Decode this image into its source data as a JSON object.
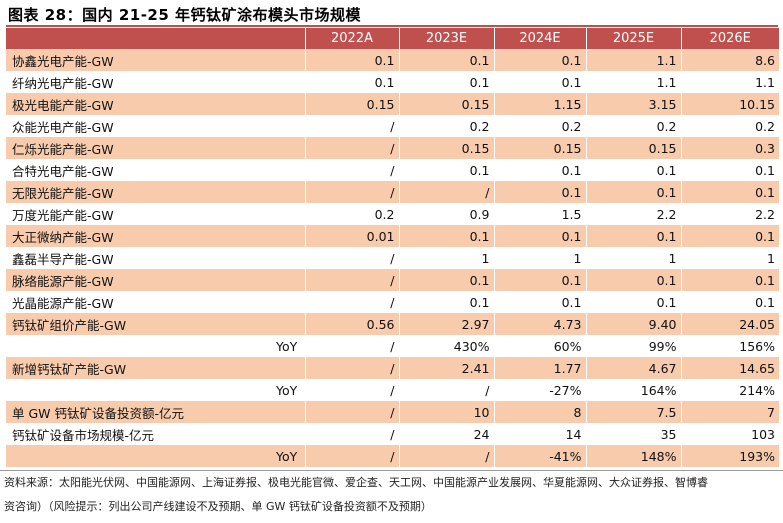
{
  "title": "图表 28：国内 21-25 年钙钛矿涂布模头市场规模",
  "columns": [
    "",
    "2022A",
    "2023E",
    "2024E",
    "2025E",
    "2026E"
  ],
  "rows": [
    {
      "label": "协鑫光电产能-GW",
      "values": [
        "0.1",
        "0.1",
        "0.1",
        "1.1",
        "8.6"
      ]
    },
    {
      "label": "纤纳光电产能-GW",
      "values": [
        "0.1",
        "0.1",
        "0.1",
        "1.1",
        "1.1"
      ]
    },
    {
      "label": "极光电能产能-GW",
      "values": [
        "0.15",
        "0.15",
        "1.15",
        "3.15",
        "10.15"
      ]
    },
    {
      "label": "众能光电产能-GW",
      "values": [
        "/",
        "0.2",
        "0.2",
        "0.2",
        "0.2"
      ]
    },
    {
      "label": "仁烁光能产能-GW",
      "values": [
        "/",
        "0.15",
        "0.15",
        "0.15",
        "0.3"
      ]
    },
    {
      "label": "合特光电产能-GW",
      "values": [
        "/",
        "0.1",
        "0.1",
        "0.1",
        "0.1"
      ]
    },
    {
      "label": "无限光能产能-GW",
      "values": [
        "/",
        "/",
        "0.1",
        "0.1",
        "0.1"
      ]
    },
    {
      "label": "万度光能产能-GW",
      "values": [
        "0.2",
        "0.9",
        "1.5",
        "2.2",
        "2.2"
      ]
    },
    {
      "label": "大正微纳产能-GW",
      "values": [
        "0.01",
        "0.1",
        "0.1",
        "0.1",
        "0.1"
      ]
    },
    {
      "label": "鑫磊半导产能-GW",
      "values": [
        "/",
        "1",
        "1",
        "1",
        "1"
      ]
    },
    {
      "label": "脉络能源产能-GW",
      "values": [
        "/",
        "0.1",
        "0.1",
        "0.1",
        "0.1"
      ]
    },
    {
      "label": "光晶能源产能-GW",
      "values": [
        "/",
        "0.1",
        "0.1",
        "0.1",
        "0.1"
      ]
    },
    {
      "label": "钙钛矿组价产能-GW",
      "values": [
        "0.56",
        "2.97",
        "4.73",
        "9.40",
        "24.05"
      ]
    },
    {
      "label": "YoY",
      "values": [
        "/",
        "430%",
        "60%",
        "99%",
        "156%"
      ]
    },
    {
      "label": "新增钙钛矿产能-GW",
      "values": [
        "/",
        "2.41",
        "1.77",
        "4.67",
        "14.65"
      ]
    },
    {
      "label": "YoY",
      "values": [
        "/",
        "/",
        "-27%",
        "164%",
        "214%"
      ]
    },
    {
      "label": "单 GW 钙钛矿设备投资额-亿元",
      "values": [
        "/",
        "10",
        "8",
        "7.5",
        "7"
      ]
    },
    {
      "label": "钙钛矿设备市场规模-亿元",
      "values": [
        "/",
        "24",
        "14",
        "35",
        "103"
      ]
    },
    {
      "label": "YoY",
      "values": [
        "/",
        "/",
        "-41%",
        "148%",
        "193%"
      ]
    }
  ],
  "footer": {
    "source": "资料来源：太阳能光伏网、中国能源网、上海证券报、极电光能官微、爱企查、天工网、中国能源产业发展网、华夏能源网、大众证券报、智博睿",
    "note": "资咨询）（风险提示：列出公司产线建设不及预期、单 GW 钙钛矿设备投资额不及预期）"
  }
}
